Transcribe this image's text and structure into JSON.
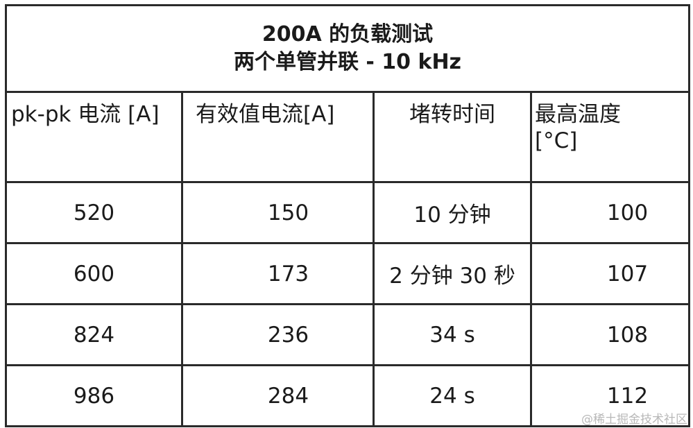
{
  "table": {
    "title": [
      "200A  的负载测试",
      "两个单管并联  - 10 kHz"
    ],
    "header": [
      "pk-pk  电流  [A]",
      "有效值电流[A]",
      "堵转时间",
      "最高温度\n[°C]"
    ],
    "rows": [
      [
        "520",
        "150",
        "10  分钟",
        "100"
      ],
      [
        "600",
        "173",
        "2 分钟 30 秒",
        "107"
      ],
      [
        "824",
        "236",
        "34 s",
        "108"
      ],
      [
        "986",
        "284",
        "24 s",
        "112"
      ]
    ]
  },
  "watermark": "@稀土掘金技术社区"
}
